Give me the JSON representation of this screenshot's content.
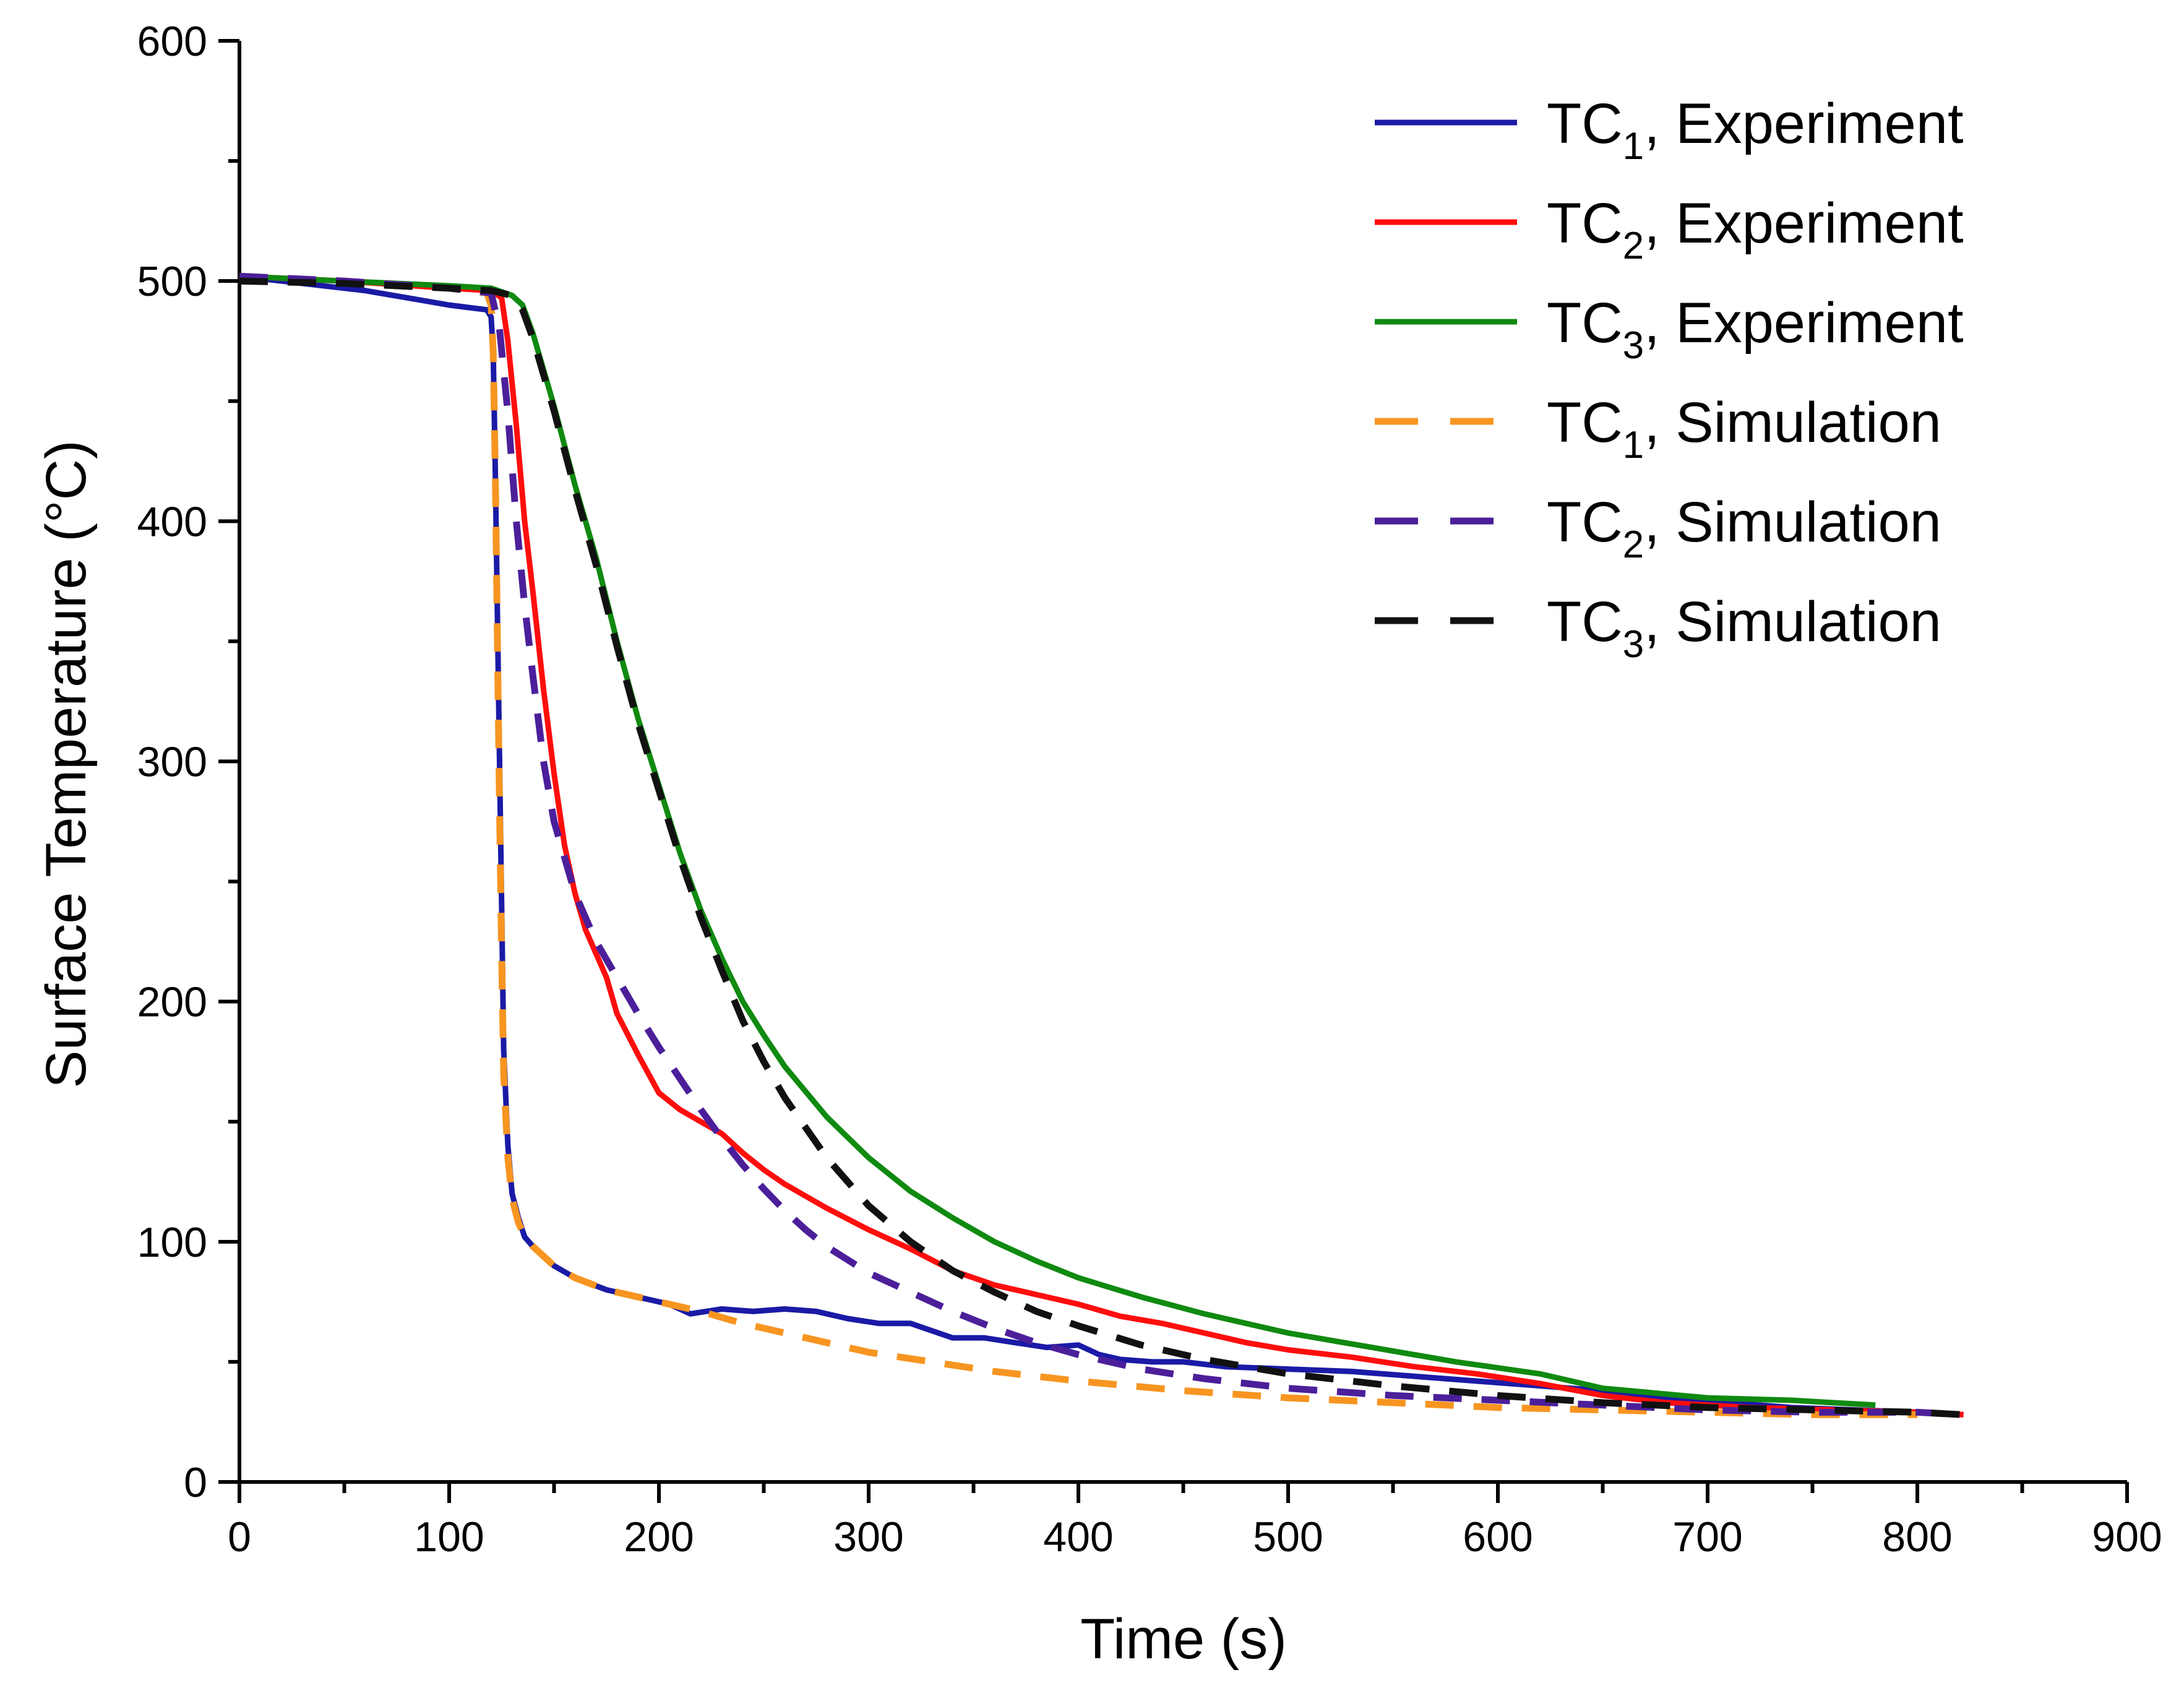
{
  "chart_data": {
    "type": "line",
    "xlabel": "Time (s)",
    "ylabel": "Surface Temperature (°C)",
    "xlim": [
      0,
      900
    ],
    "ylim": [
      0,
      600
    ],
    "xticks": [
      0,
      100,
      200,
      300,
      400,
      500,
      600,
      700,
      800,
      900
    ],
    "yticks": [
      0,
      100,
      200,
      300,
      400,
      500,
      600
    ],
    "grid": false,
    "legend_position": "top-right",
    "series": [
      {
        "name": "TC1, Experiment",
        "label_base": "TC",
        "label_sub": "1",
        "label_rest": ", Experiment",
        "color": "#1a1aa6",
        "dash": "solid",
        "x": [
          0,
          20,
          60,
          100,
          118,
          120,
          121,
          122,
          123,
          124,
          125,
          126,
          128,
          130,
          133,
          136,
          140,
          150,
          160,
          175,
          190,
          205,
          215,
          230,
          245,
          260,
          275,
          290,
          305,
          320,
          330,
          340,
          355,
          370,
          385,
          400,
          410,
          420,
          435,
          450,
          470,
          500,
          530,
          560,
          590,
          620,
          650,
          680,
          710,
          740,
          770,
          800,
          822
        ],
        "y": [
          502,
          500,
          496,
          490,
          488,
          485,
          470,
          420,
          360,
          300,
          240,
          180,
          140,
          120,
          110,
          102,
          98,
          90,
          85,
          80,
          77,
          74,
          70,
          72,
          71,
          72,
          71,
          68,
          66,
          66,
          63,
          60,
          60,
          58,
          56,
          57,
          53,
          51,
          50,
          50,
          48,
          47,
          46,
          44,
          42,
          40,
          38,
          35,
          33,
          31,
          30,
          29,
          28
        ]
      },
      {
        "name": "TC2, Experiment",
        "label_base": "TC",
        "label_sub": "2",
        "label_rest": ", Experiment",
        "color": "#ff0d0d",
        "dash": "solid",
        "x": [
          0,
          50,
          100,
          120,
          125,
          128,
          132,
          136,
          140,
          145,
          150,
          155,
          160,
          165,
          170,
          175,
          180,
          190,
          200,
          210,
          220,
          230,
          240,
          250,
          260,
          270,
          280,
          300,
          320,
          340,
          360,
          380,
          400,
          420,
          440,
          460,
          480,
          500,
          530,
          560,
          590,
          620,
          650,
          680,
          720,
          760,
          800,
          822
        ],
        "y": [
          502,
          500,
          497,
          496,
          493,
          475,
          440,
          400,
          370,
          330,
          295,
          265,
          245,
          230,
          220,
          210,
          195,
          178,
          162,
          155,
          150,
          145,
          137,
          130,
          124,
          119,
          114,
          105,
          97,
          88,
          82,
          78,
          74,
          69,
          66,
          62,
          58,
          55,
          52,
          48,
          45,
          41,
          36,
          33,
          31,
          30,
          29,
          28
        ]
      },
      {
        "name": "TC3, Experiment",
        "label_base": "TC",
        "label_sub": "3",
        "label_rest": ", Experiment",
        "color": "#108a10",
        "dash": "solid",
        "x": [
          0,
          50,
          100,
          120,
          130,
          135,
          140,
          150,
          160,
          170,
          180,
          190,
          200,
          210,
          220,
          230,
          240,
          250,
          260,
          280,
          300,
          320,
          340,
          360,
          380,
          400,
          430,
          460,
          500,
          540,
          580,
          620,
          650,
          700,
          740,
          780
        ],
        "y": [
          502,
          500,
          498,
          497,
          494,
          490,
          478,
          448,
          415,
          385,
          350,
          318,
          290,
          262,
          238,
          218,
          200,
          186,
          173,
          152,
          135,
          121,
          110,
          100,
          92,
          85,
          77,
          70,
          62,
          56,
          50,
          45,
          39,
          35,
          34,
          32
        ]
      },
      {
        "name": "TC1, Simulation",
        "label_base": "TC",
        "label_sub": "1",
        "label_rest": ", Simulation",
        "color": "#f79521",
        "dash": "dashed",
        "x": [
          0,
          50,
          100,
          118,
          120,
          121,
          122,
          123,
          124,
          125,
          126,
          128,
          130,
          133,
          136,
          140,
          150,
          160,
          175,
          190,
          205,
          220,
          240,
          260,
          280,
          300,
          330,
          360,
          400,
          450,
          500,
          550,
          600,
          650,
          700,
          750,
          800
        ],
        "y": [
          502,
          500,
          497,
          495,
          490,
          470,
          420,
          350,
          280,
          220,
          170,
          135,
          118,
          108,
          102,
          98,
          90,
          85,
          80,
          77,
          74,
          71,
          66,
          62,
          58,
          54,
          50,
          46,
          42,
          38,
          35,
          33,
          31,
          30,
          29,
          28,
          28
        ]
      },
      {
        "name": "TC2, Simulation",
        "label_base": "TC",
        "label_sub": "2",
        "label_rest": ", Simulation",
        "color": "#4b1f9a",
        "dash": "dashed",
        "x": [
          0,
          50,
          100,
          120,
          124,
          128,
          132,
          136,
          140,
          145,
          150,
          160,
          170,
          180,
          190,
          200,
          210,
          220,
          230,
          240,
          250,
          260,
          270,
          280,
          300,
          320,
          340,
          360,
          380,
          400,
          430,
          460,
          500,
          550,
          600,
          650,
          700,
          750,
          800,
          822
        ],
        "y": [
          502,
          500,
          497,
          495,
          480,
          445,
          400,
          365,
          335,
          300,
          275,
          245,
          225,
          210,
          195,
          181,
          168,
          155,
          143,
          132,
          122,
          113,
          105,
          98,
          87,
          79,
          71,
          64,
          58,
          53,
          47,
          43,
          39,
          36,
          34,
          32,
          30,
          29,
          29,
          28
        ]
      },
      {
        "name": "TC3, Simulation",
        "label_base": "TC",
        "label_sub": "3",
        "label_rest": ", Simulation",
        "color": "#111111",
        "dash": "dashed",
        "x": [
          0,
          50,
          100,
          120,
          130,
          135,
          140,
          150,
          160,
          170,
          180,
          190,
          200,
          210,
          220,
          230,
          240,
          250,
          260,
          280,
          300,
          320,
          340,
          360,
          380,
          400,
          430,
          460,
          500,
          550,
          600,
          650,
          700,
          750,
          800,
          822
        ],
        "y": [
          500,
          499,
          497,
          496,
          494,
          488,
          476,
          446,
          413,
          382,
          348,
          316,
          288,
          260,
          235,
          213,
          192,
          175,
          160,
          135,
          115,
          100,
          88,
          79,
          71,
          65,
          57,
          51,
          45,
          40,
          36,
          33,
          31,
          30,
          29,
          28
        ]
      }
    ]
  }
}
